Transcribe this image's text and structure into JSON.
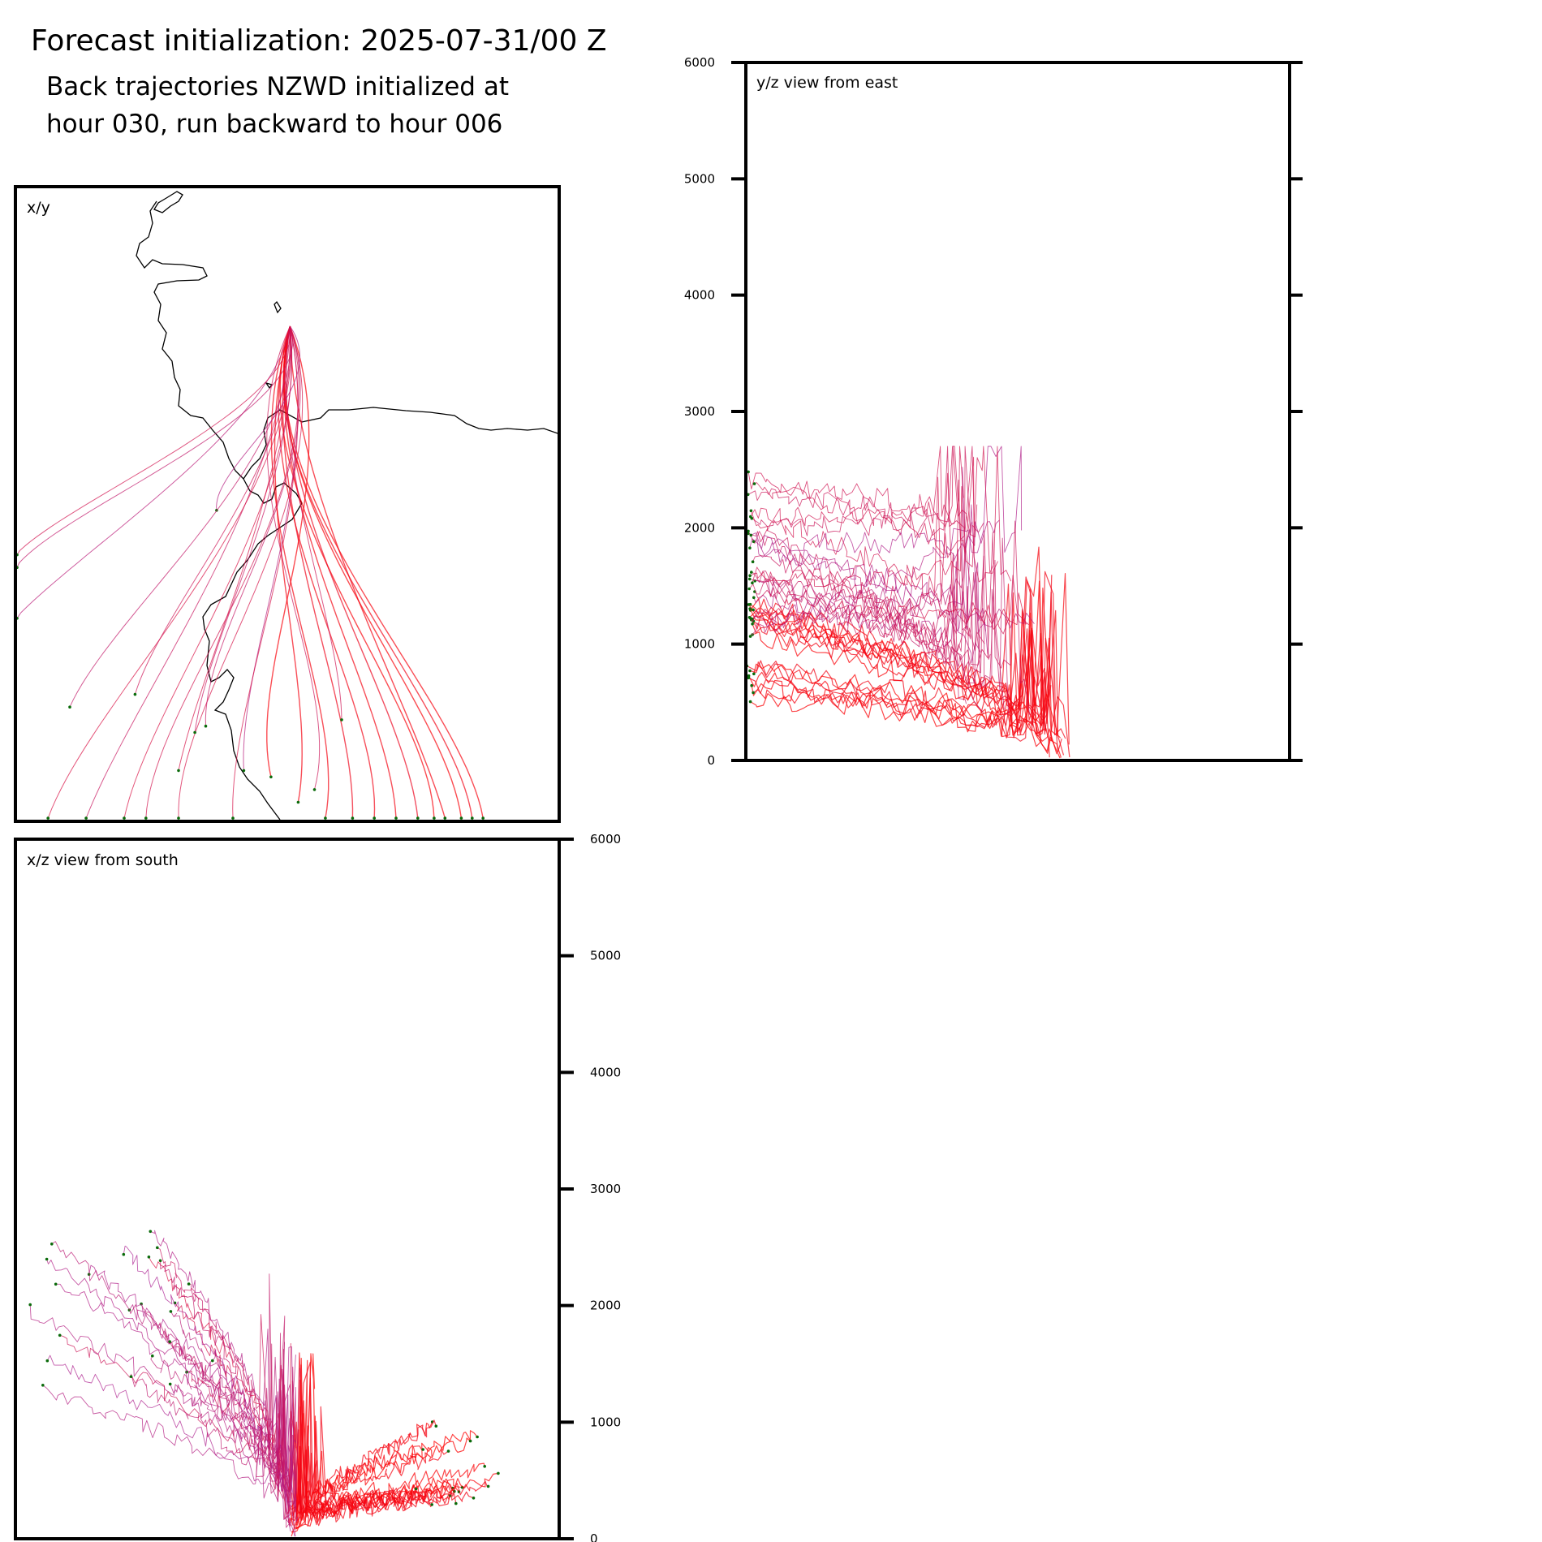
{
  "header": {
    "title": "Forecast initialization: 2025-07-31/00 Z",
    "subtitle_line1": "Back trajectories NZWD initialized at",
    "subtitle_line2": "hour 030, run backward to hour 006"
  },
  "colors": {
    "recent": "#ff0000",
    "older": "#a020a0",
    "endpoint": "#0b6b0b",
    "coast": "#000000"
  },
  "chart_data": [
    {
      "id": "xy",
      "type": "line",
      "title": "x/y",
      "description_of_content": "",
      "ticks": [],
      "origin": [
        0.505,
        0.22
      ],
      "targets": [
        [
          0.86,
          1.0
        ],
        [
          0.84,
          1.0
        ],
        [
          0.82,
          1.0
        ],
        [
          0.79,
          1.0
        ],
        [
          0.77,
          1.0
        ],
        [
          0.74,
          1.0
        ],
        [
          0.7,
          1.0
        ],
        [
          0.66,
          1.0
        ],
        [
          0.62,
          1.0
        ],
        [
          0.57,
          1.0
        ],
        [
          0.52,
          0.97
        ],
        [
          0.47,
          0.93
        ],
        [
          0.42,
          0.92
        ],
        [
          0.3,
          1.0
        ],
        [
          0.2,
          1.0
        ],
        [
          0.13,
          1.0
        ],
        [
          0.06,
          1.0
        ],
        [
          0.0,
          0.68
        ],
        [
          0.0,
          0.6
        ],
        [
          0.0,
          0.58
        ],
        [
          0.22,
          0.8
        ],
        [
          0.35,
          0.85
        ],
        [
          0.6,
          0.84
        ],
        [
          0.37,
          0.51
        ],
        [
          0.55,
          0.95
        ],
        [
          0.33,
          0.86
        ],
        [
          0.24,
          1.0
        ],
        [
          0.1,
          0.82
        ],
        [
          0.4,
          1.0
        ],
        [
          0.3,
          0.92
        ]
      ]
    },
    {
      "id": "yz",
      "type": "line",
      "title": "y/z view from east",
      "ylim": [
        0,
        6000
      ],
      "yticks": [
        0,
        1000,
        2000,
        3000,
        4000,
        5000,
        6000
      ],
      "ytick_side": "left"
    },
    {
      "id": "xz",
      "type": "line",
      "title": "x/z view from south",
      "ylim": [
        0,
        6000
      ],
      "yticks": [
        0,
        1000,
        2000,
        3000,
        4000,
        5000,
        6000
      ],
      "ytick_side": "right"
    }
  ]
}
